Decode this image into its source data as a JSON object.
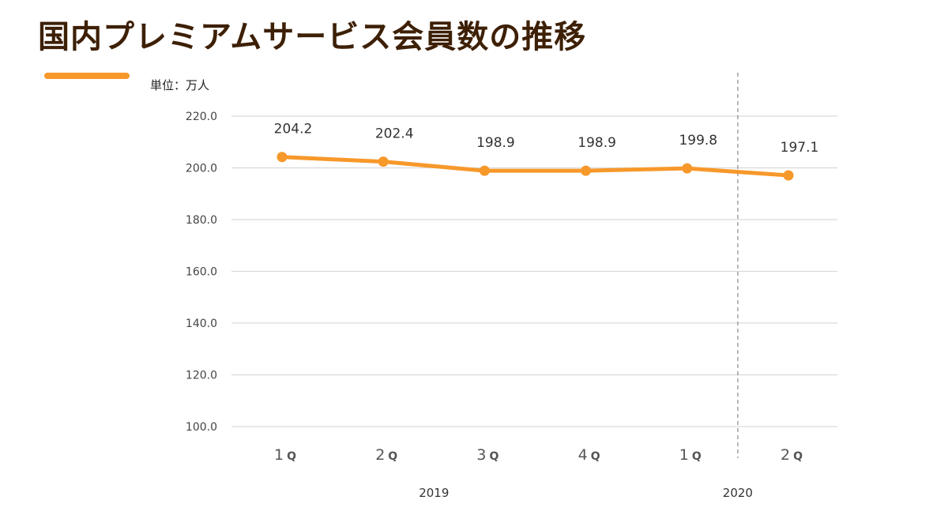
{
  "title": "国内プレミアムサービス会員数の推移",
  "unit_label": "単位：万人",
  "colors": {
    "line": "#f7982a",
    "title": "#3d2006",
    "grid": "#d9d9d9",
    "divider": "#888888"
  },
  "chart_data": {
    "type": "line",
    "title": "国内プレミアムサービス会員数の推移",
    "xlabel": "",
    "ylabel": "",
    "unit": "単位：万人",
    "categories": [
      "1Q",
      "2Q",
      "3Q",
      "4Q",
      "1Q",
      "2Q"
    ],
    "year_groups": [
      {
        "label": "2019",
        "span": [
          0,
          3
        ]
      },
      {
        "label": "2020",
        "span": [
          4,
          5
        ]
      }
    ],
    "series": [
      {
        "values": [
          204.2,
          202.4,
          198.9,
          198.9,
          199.8,
          197.1
        ]
      }
    ],
    "data_labels": [
      "204.2",
      "202.4",
      "198.9",
      "198.9",
      "199.8",
      "197.1"
    ],
    "y_ticks": [
      "100.0",
      "120.0",
      "140.0",
      "160.0",
      "180.0",
      "200.0",
      "220.0"
    ],
    "ylim": [
      100,
      220
    ],
    "grid": true,
    "legend": "top-left"
  }
}
